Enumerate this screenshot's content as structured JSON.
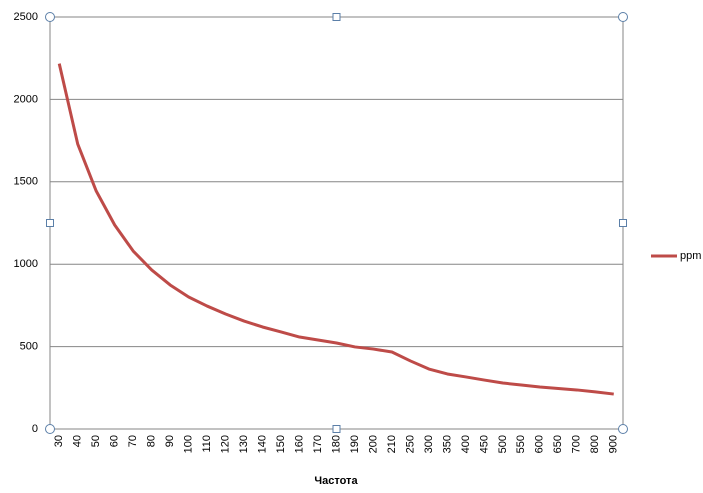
{
  "chart_data": {
    "type": "line",
    "x_label": "Частота",
    "categories": [
      "30",
      "40",
      "50",
      "60",
      "70",
      "80",
      "90",
      "100",
      "110",
      "120",
      "130",
      "140",
      "150",
      "160",
      "170",
      "180",
      "190",
      "200",
      "210",
      "250",
      "300",
      "350",
      "400",
      "450",
      "500",
      "550",
      "600",
      "650",
      "700",
      "800",
      "900"
    ],
    "series": [
      {
        "name": "ppm",
        "color": "#be4b48",
        "values": [
          2217,
          1729,
          1444,
          1238,
          1080,
          965,
          874,
          801,
          746,
          698,
          655,
          619,
          589,
          558,
          540,
          522,
          498,
          485,
          467,
          413,
          364,
          334,
          316,
          297,
          279,
          267,
          255,
          246,
          237,
          225,
          212
        ]
      }
    ],
    "ylim": [
      0,
      2500
    ],
    "yticks": [
      0,
      500,
      1000,
      1500,
      2000,
      2500
    ],
    "grid": true,
    "legend": "right"
  }
}
